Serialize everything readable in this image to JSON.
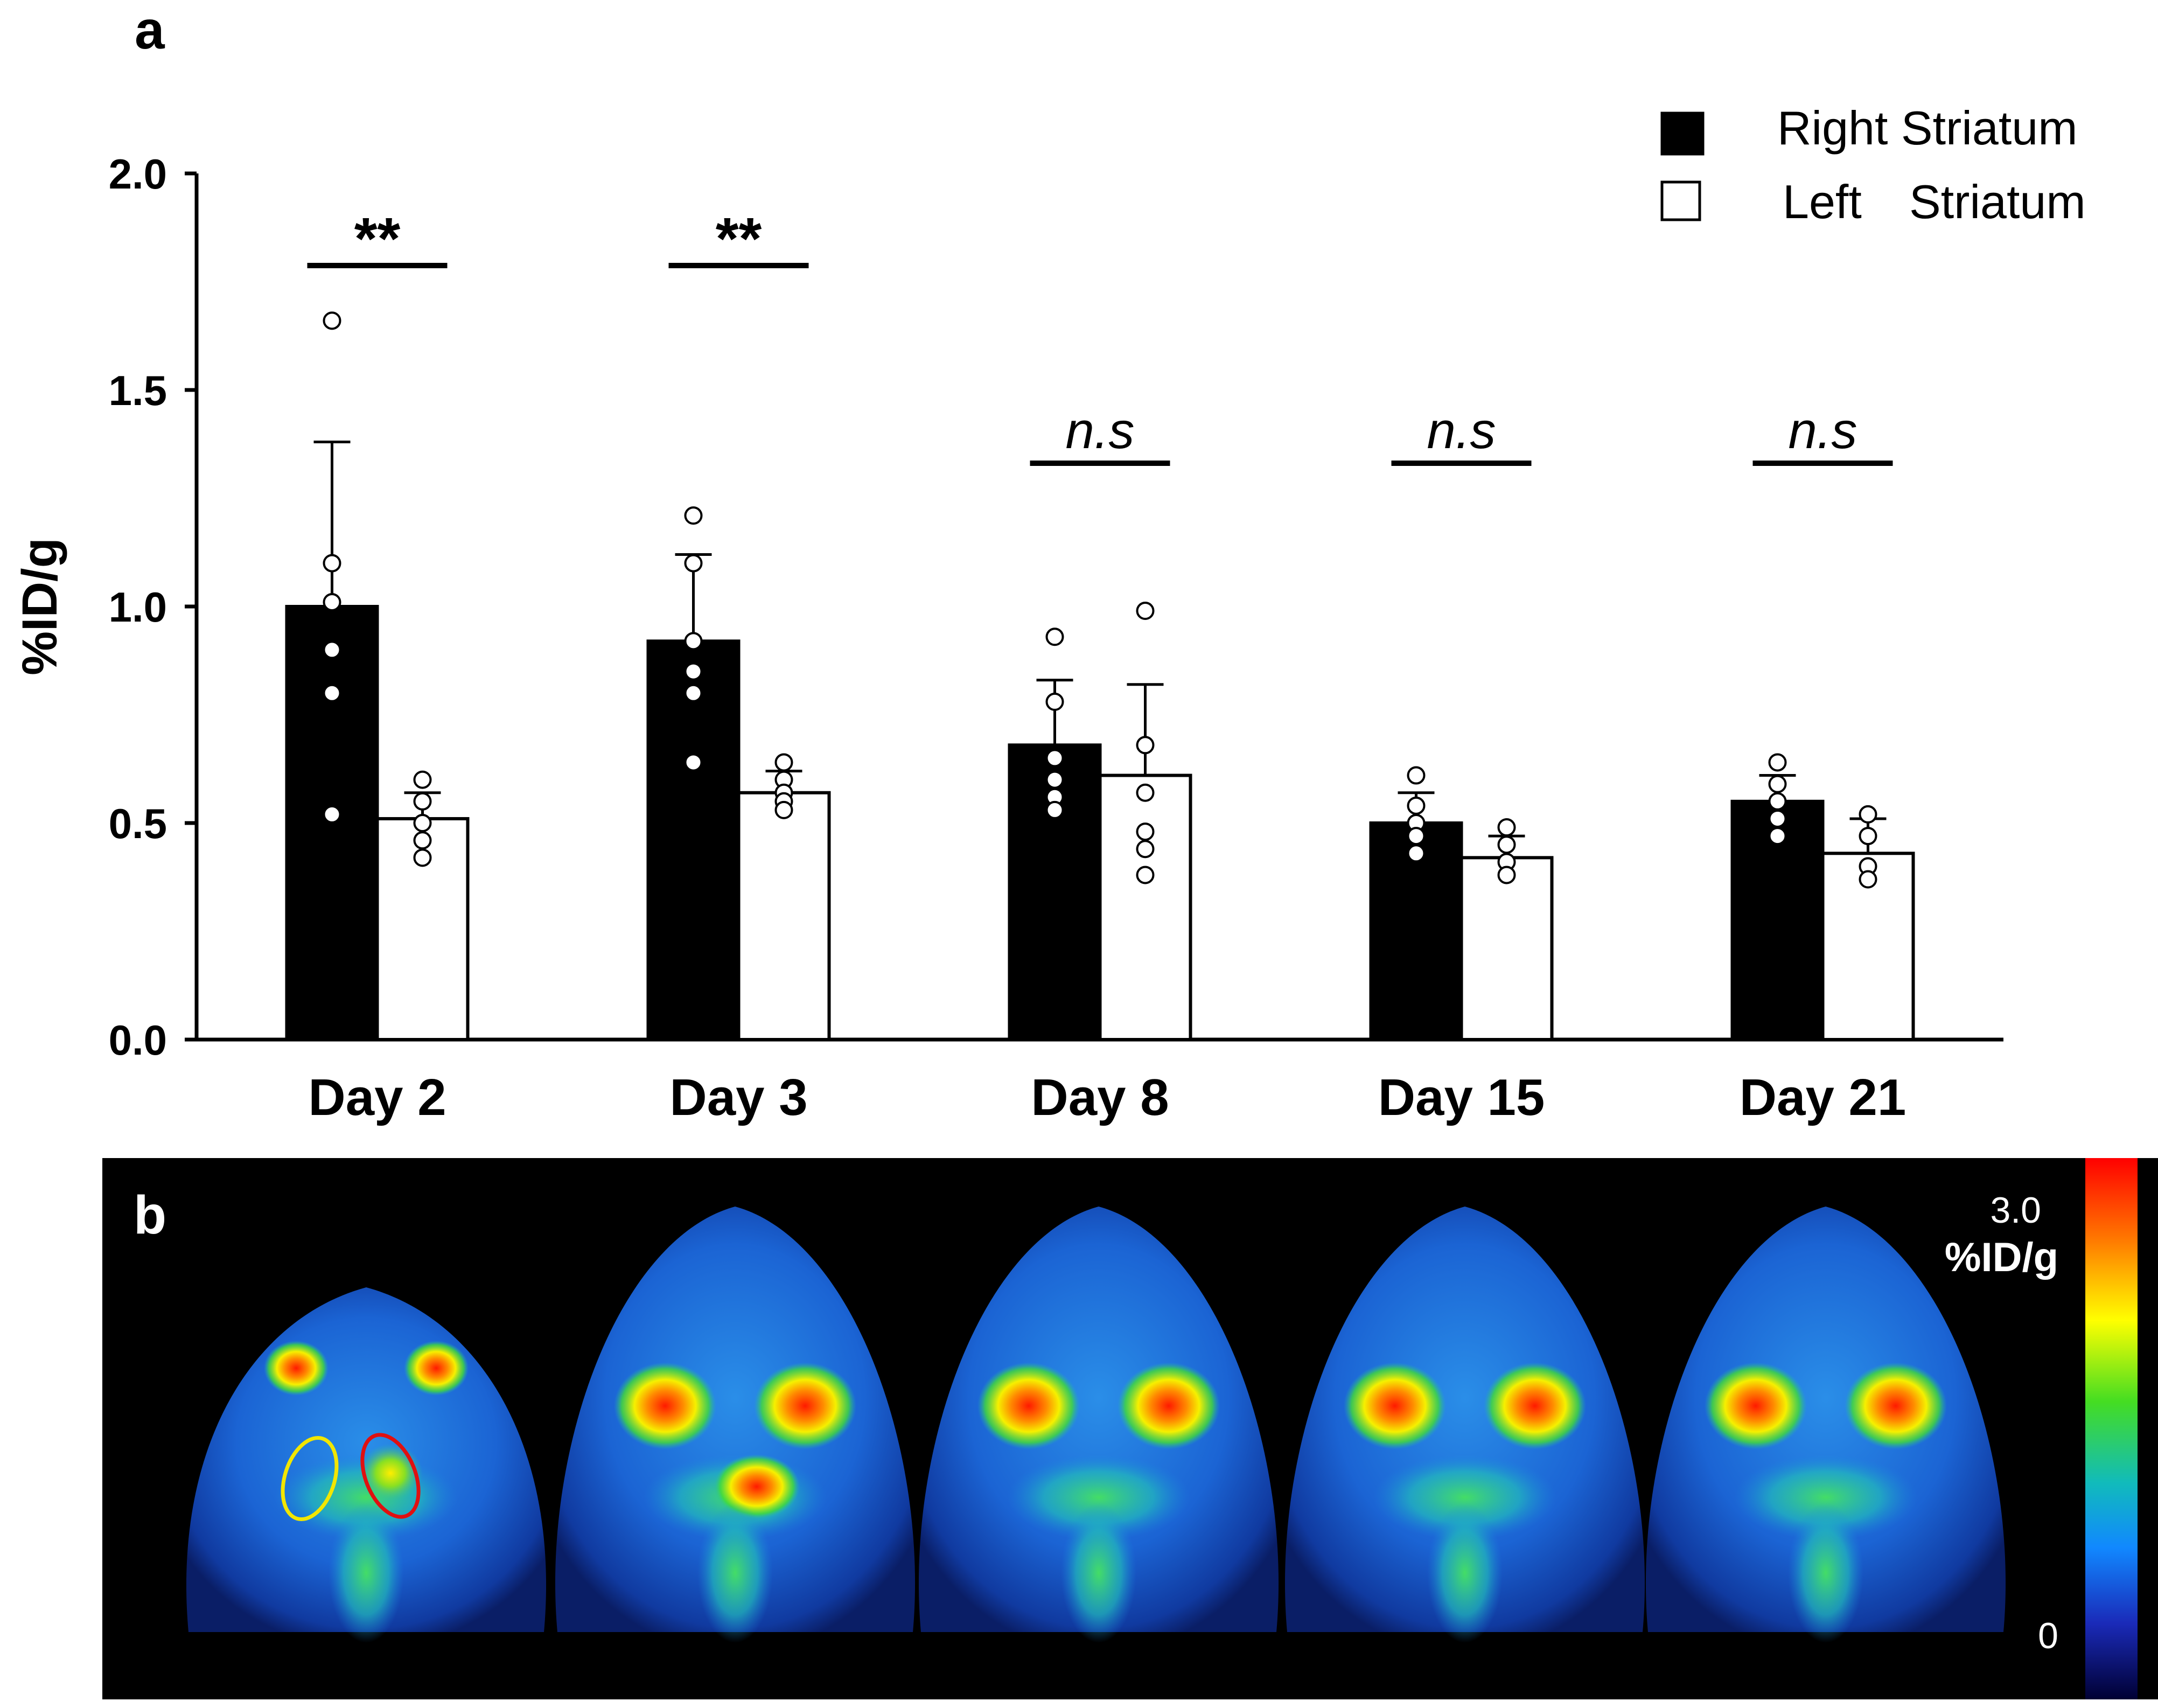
{
  "panel_a_label": "a",
  "panel_b_label": "b",
  "chart_data": {
    "type": "bar",
    "title": "",
    "xlabel": "",
    "ylabel": "%ID/g",
    "ylim": [
      0,
      2.0
    ],
    "yticks": [
      "0.0",
      "0.5",
      "1.0",
      "1.5",
      "2.0"
    ],
    "ytick_values": [
      0,
      0.5,
      1.0,
      1.5,
      2.0
    ],
    "categories": [
      "Day 2",
      "Day 3",
      "Day 8",
      "Day 15",
      "Day 21"
    ],
    "grid": false,
    "legend_position": "top-right",
    "series": [
      {
        "name": "Right Striatum",
        "fill": "#000000",
        "values": [
          1.0,
          0.92,
          0.68,
          0.5,
          0.55
        ],
        "error": [
          0.38,
          0.2,
          0.15,
          0.07,
          0.06
        ],
        "points": [
          [
            1.66,
            1.1,
            1.01,
            0.9,
            0.8,
            0.52
          ],
          [
            1.21,
            1.1,
            0.92,
            0.85,
            0.8,
            0.64
          ],
          [
            0.93,
            0.78,
            0.65,
            0.6,
            0.56,
            0.53
          ],
          [
            0.61,
            0.54,
            0.5,
            0.47,
            0.43
          ],
          [
            0.64,
            0.59,
            0.55,
            0.51,
            0.47
          ]
        ]
      },
      {
        "name": "Left Striatum",
        "fill": "#ffffff",
        "values": [
          0.51,
          0.57,
          0.61,
          0.42,
          0.43
        ],
        "error": [
          0.06,
          0.05,
          0.21,
          0.05,
          0.08
        ],
        "points": [
          [
            0.6,
            0.55,
            0.5,
            0.46,
            0.42
          ],
          [
            0.64,
            0.6,
            0.57,
            0.55,
            0.53
          ],
          [
            0.99,
            0.68,
            0.57,
            0.48,
            0.44,
            0.38
          ],
          [
            0.49,
            0.45,
            0.41,
            0.38
          ],
          [
            0.52,
            0.47,
            0.4,
            0.37
          ]
        ]
      }
    ],
    "significance": [
      "**",
      "**",
      "n.s",
      "n.s",
      "n.s"
    ],
    "legend": {
      "right_label": "Right Striatum",
      "left_word": "Left",
      "left_striatum": "Striatum"
    }
  },
  "colorbar": {
    "max_label": "3.0",
    "unit_label": "%ID/g",
    "min_label": "0"
  }
}
